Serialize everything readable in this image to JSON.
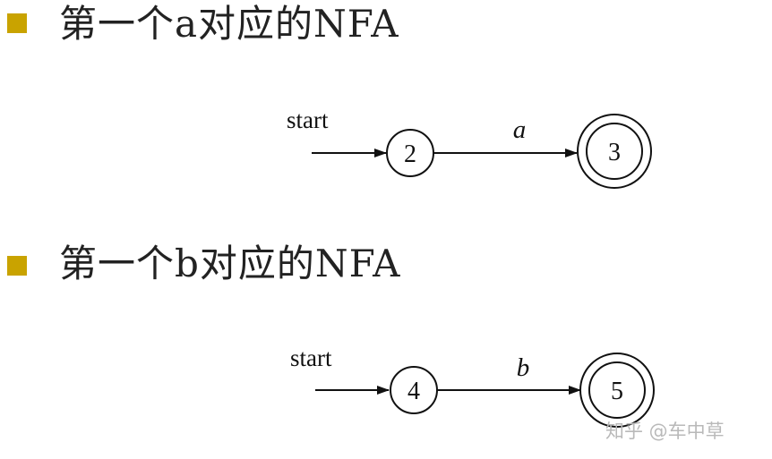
{
  "section1": {
    "heading": "第一个a对应的NFA",
    "start_label": "start",
    "edge_label": "a",
    "start_state": "2",
    "accept_state": "3"
  },
  "section2": {
    "heading": "第一个b对应的NFA",
    "start_label": "start",
    "edge_label": "b",
    "start_state": "4",
    "accept_state": "5"
  },
  "watermark": "知乎 @车中草",
  "colors": {
    "bullet": "#c9a300",
    "text": "#222222",
    "line": "#111111",
    "watermark": "#b9b9b9"
  }
}
